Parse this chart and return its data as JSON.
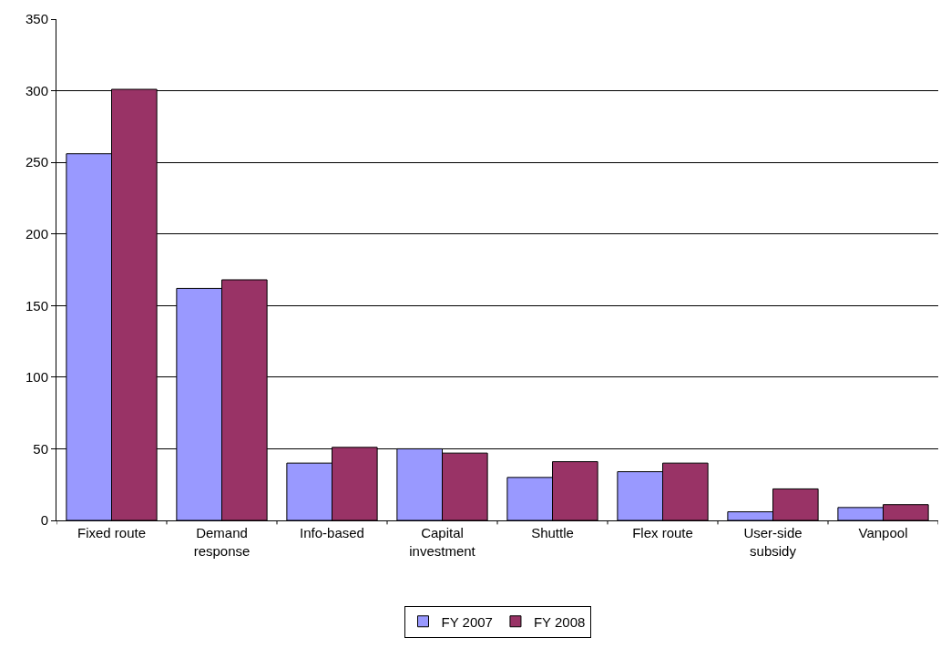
{
  "chart_data": {
    "type": "bar",
    "categories": [
      "Fixed route",
      "Demand response",
      "Info-based",
      "Capital investment",
      "Shuttle",
      "Flex route",
      "User-side subsidy",
      "Vanpool"
    ],
    "series": [
      {
        "name": "FY 2007",
        "color": "#9999ff",
        "values": [
          256,
          162,
          40,
          50,
          30,
          34,
          6,
          9
        ]
      },
      {
        "name": "FY 2008",
        "color": "#993366",
        "values": [
          301,
          168,
          51,
          47,
          41,
          40,
          22,
          11
        ]
      }
    ],
    "ylim": [
      0,
      350
    ],
    "yticks": [
      0,
      50,
      100,
      150,
      200,
      250,
      300,
      350
    ],
    "grid": "y",
    "legend": "bottom"
  }
}
